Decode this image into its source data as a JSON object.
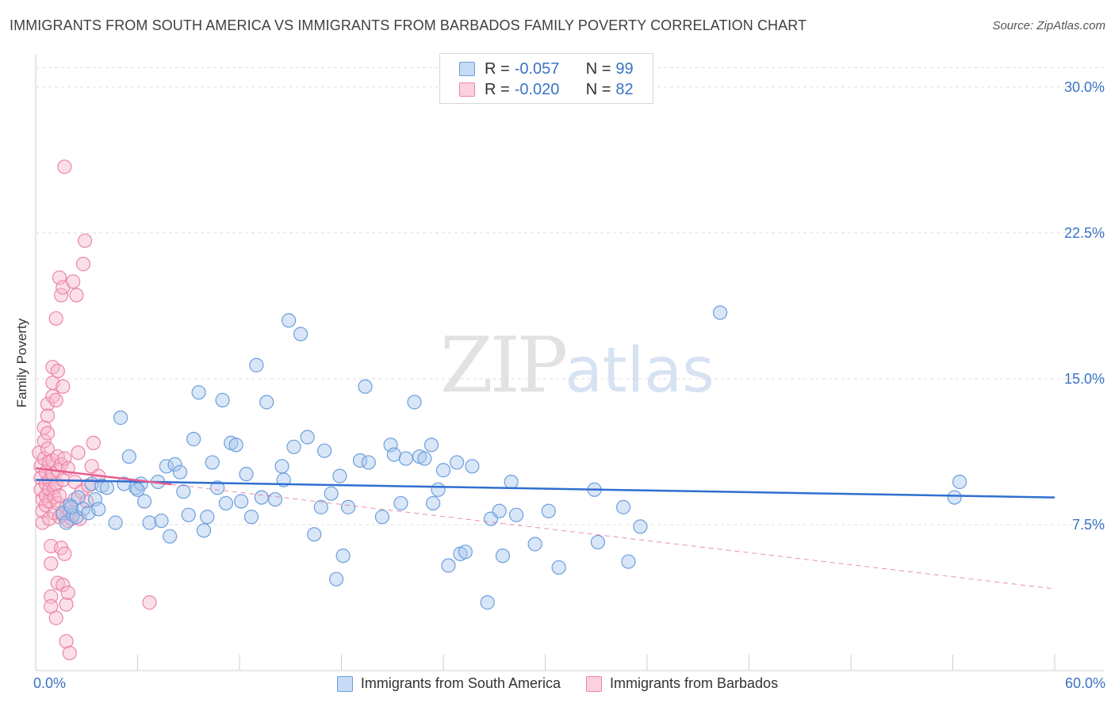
{
  "title": "IMMIGRANTS FROM SOUTH AMERICA VS IMMIGRANTS FROM BARBADOS FAMILY POVERTY CORRELATION CHART",
  "source": "Source: ZipAtlas.com",
  "watermark": {
    "zip": "ZIP",
    "atlas": "atlas"
  },
  "legend": {
    "rows": [
      {
        "r_label": "R =",
        "r_value": "-0.057",
        "n_label": "N =",
        "n_value": "99"
      },
      {
        "r_label": "R =",
        "r_value": "-0.020",
        "n_label": "N =",
        "n_value": "82"
      }
    ]
  },
  "colors": {
    "blue_fill": "#a9c8ee",
    "blue_stroke": "#6d9fdc",
    "blue_line": "#2f6fd0",
    "pink_fill": "#f6b8cc",
    "pink_stroke": "#ec85a6",
    "pink_line": "#e85c8c",
    "axis_text": "#3a73c4",
    "grid": "#dddddd"
  },
  "chart_data": {
    "type": "scatter",
    "title": "IMMIGRANTS FROM SOUTH AMERICA VS IMMIGRANTS FROM BARBADOS FAMILY POVERTY CORRELATION CHART",
    "xlabel": "",
    "ylabel": "Family Poverty",
    "xlim": [
      0,
      60
    ],
    "ylim": [
      0,
      31.5
    ],
    "x_tick_labels": [
      "0.0%",
      "60.0%"
    ],
    "y_ticks": [
      7.5,
      15.0,
      22.5,
      30.0
    ],
    "y_tick_labels": [
      "7.5%",
      "15.0%",
      "22.5%",
      "30.0%"
    ],
    "grid": true,
    "legend_position": "top-center",
    "series": [
      {
        "name": "Immigrants from South America",
        "color": "#a9c8ee",
        "trend": {
          "x": [
            0,
            60
          ],
          "y": [
            9.8,
            8.9
          ]
        },
        "points": [
          [
            1.6,
            8.1
          ],
          [
            1.8,
            7.6
          ],
          [
            2.0,
            8.5
          ],
          [
            2.2,
            8.0
          ],
          [
            2.5,
            8.9
          ],
          [
            2.4,
            7.9
          ],
          [
            2.8,
            8.3
          ],
          [
            3.1,
            8.1
          ],
          [
            3.3,
            9.6
          ],
          [
            3.5,
            8.8
          ],
          [
            3.7,
            8.3
          ],
          [
            3.9,
            9.5
          ],
          [
            4.2,
            9.4
          ],
          [
            4.7,
            7.6
          ],
          [
            5.0,
            13.0
          ],
          [
            5.2,
            9.6
          ],
          [
            5.5,
            11.0
          ],
          [
            5.9,
            9.4
          ],
          [
            6.2,
            9.6
          ],
          [
            6.4,
            8.7
          ],
          [
            6.7,
            7.6
          ],
          [
            7.2,
            9.7
          ],
          [
            7.4,
            7.7
          ],
          [
            7.7,
            10.5
          ],
          [
            7.9,
            6.9
          ],
          [
            8.2,
            10.6
          ],
          [
            8.5,
            10.2
          ],
          [
            8.7,
            9.2
          ],
          [
            9.0,
            8.0
          ],
          [
            9.3,
            11.9
          ],
          [
            9.6,
            14.3
          ],
          [
            9.9,
            7.2
          ],
          [
            10.1,
            7.9
          ],
          [
            10.4,
            10.7
          ],
          [
            10.7,
            9.4
          ],
          [
            11.0,
            13.9
          ],
          [
            11.2,
            8.6
          ],
          [
            11.5,
            11.7
          ],
          [
            11.8,
            11.6
          ],
          [
            12.1,
            8.7
          ],
          [
            12.4,
            10.1
          ],
          [
            12.7,
            7.9
          ],
          [
            13.0,
            15.7
          ],
          [
            13.3,
            8.9
          ],
          [
            13.6,
            13.8
          ],
          [
            14.1,
            8.8
          ],
          [
            14.5,
            10.5
          ],
          [
            14.6,
            9.8
          ],
          [
            14.9,
            18.0
          ],
          [
            15.2,
            11.5
          ],
          [
            15.6,
            17.3
          ],
          [
            16.0,
            12.0
          ],
          [
            16.4,
            7.0
          ],
          [
            16.8,
            8.4
          ],
          [
            17.0,
            11.3
          ],
          [
            17.4,
            9.1
          ],
          [
            17.7,
            4.7
          ],
          [
            17.9,
            10.0
          ],
          [
            18.1,
            5.9
          ],
          [
            18.4,
            8.4
          ],
          [
            19.1,
            10.8
          ],
          [
            19.4,
            14.6
          ],
          [
            19.6,
            10.7
          ],
          [
            20.4,
            7.9
          ],
          [
            20.9,
            11.6
          ],
          [
            21.1,
            11.1
          ],
          [
            21.5,
            8.6
          ],
          [
            21.8,
            10.9
          ],
          [
            22.3,
            13.8
          ],
          [
            22.6,
            11.0
          ],
          [
            22.9,
            10.9
          ],
          [
            23.3,
            11.6
          ],
          [
            23.4,
            8.6
          ],
          [
            23.7,
            9.3
          ],
          [
            24.0,
            10.3
          ],
          [
            24.3,
            5.4
          ],
          [
            24.8,
            10.7
          ],
          [
            25.0,
            6.0
          ],
          [
            25.3,
            6.1
          ],
          [
            25.7,
            10.5
          ],
          [
            26.6,
            3.5
          ],
          [
            26.8,
            7.8
          ],
          [
            27.3,
            8.2
          ],
          [
            27.5,
            5.9
          ],
          [
            28.0,
            9.7
          ],
          [
            28.3,
            8.0
          ],
          [
            29.4,
            6.5
          ],
          [
            30.2,
            8.2
          ],
          [
            30.8,
            5.3
          ],
          [
            32.9,
            9.3
          ],
          [
            33.1,
            6.6
          ],
          [
            34.6,
            8.4
          ],
          [
            34.9,
            5.6
          ],
          [
            35.6,
            7.4
          ],
          [
            40.3,
            18.4
          ],
          [
            54.1,
            8.9
          ],
          [
            54.4,
            9.7
          ],
          [
            6.0,
            9.3
          ],
          [
            2.1,
            8.4
          ]
        ]
      },
      {
        "name": "Immigrants from Barbados",
        "color": "#f6b8cc",
        "trend": {
          "x": [
            0,
            60
          ],
          "y": [
            10.4,
            4.2
          ]
        },
        "points": [
          [
            0.2,
            11.2
          ],
          [
            0.3,
            10.5
          ],
          [
            0.3,
            9.9
          ],
          [
            0.3,
            9.3
          ],
          [
            0.4,
            8.8
          ],
          [
            0.4,
            8.2
          ],
          [
            0.4,
            7.6
          ],
          [
            0.5,
            12.5
          ],
          [
            0.5,
            11.8
          ],
          [
            0.5,
            10.9
          ],
          [
            0.6,
            10.2
          ],
          [
            0.6,
            9.6
          ],
          [
            0.6,
            9.0
          ],
          [
            0.6,
            8.5
          ],
          [
            0.7,
            13.7
          ],
          [
            0.7,
            13.1
          ],
          [
            0.7,
            12.2
          ],
          [
            0.7,
            11.4
          ],
          [
            0.8,
            10.7
          ],
          [
            0.8,
            9.8
          ],
          [
            0.8,
            9.3
          ],
          [
            0.8,
            8.7
          ],
          [
            0.8,
            7.8
          ],
          [
            0.9,
            6.4
          ],
          [
            0.9,
            5.5
          ],
          [
            0.9,
            3.8
          ],
          [
            0.9,
            3.3
          ],
          [
            1.0,
            15.6
          ],
          [
            1.0,
            14.8
          ],
          [
            1.0,
            14.1
          ],
          [
            1.0,
            10.8
          ],
          [
            1.0,
            10.1
          ],
          [
            1.1,
            9.4
          ],
          [
            1.1,
            8.9
          ],
          [
            1.1,
            8.1
          ],
          [
            1.2,
            18.1
          ],
          [
            1.2,
            13.9
          ],
          [
            1.2,
            9.6
          ],
          [
            1.2,
            2.7
          ],
          [
            1.3,
            15.4
          ],
          [
            1.3,
            11.0
          ],
          [
            1.3,
            10.3
          ],
          [
            1.3,
            8.6
          ],
          [
            1.3,
            4.5
          ],
          [
            1.4,
            20.2
          ],
          [
            1.4,
            9.0
          ],
          [
            1.4,
            7.9
          ],
          [
            1.5,
            19.3
          ],
          [
            1.5,
            10.6
          ],
          [
            1.5,
            6.3
          ],
          [
            1.6,
            19.7
          ],
          [
            1.6,
            14.6
          ],
          [
            1.6,
            9.8
          ],
          [
            1.6,
            8.0
          ],
          [
            1.6,
            4.4
          ],
          [
            1.7,
            25.9
          ],
          [
            1.7,
            10.9
          ],
          [
            1.7,
            6.0
          ],
          [
            1.8,
            8.4
          ],
          [
            1.8,
            3.4
          ],
          [
            1.8,
            1.5
          ],
          [
            1.9,
            10.4
          ],
          [
            1.9,
            7.7
          ],
          [
            1.9,
            4.0
          ],
          [
            2.0,
            8.1
          ],
          [
            2.0,
            0.9
          ],
          [
            2.1,
            7.8
          ],
          [
            2.2,
            20.0
          ],
          [
            2.3,
            9.7
          ],
          [
            2.3,
            8.8
          ],
          [
            2.4,
            19.3
          ],
          [
            2.5,
            11.2
          ],
          [
            2.6,
            7.8
          ],
          [
            2.7,
            9.2
          ],
          [
            2.8,
            20.9
          ],
          [
            2.9,
            22.1
          ],
          [
            3.0,
            8.7
          ],
          [
            3.1,
            9.5
          ],
          [
            3.3,
            10.5
          ],
          [
            3.4,
            11.7
          ],
          [
            3.7,
            10.0
          ],
          [
            6.7,
            3.5
          ]
        ]
      }
    ]
  },
  "bottom_legend": [
    {
      "label": "Immigrants from South America"
    },
    {
      "label": "Immigrants from Barbados"
    }
  ]
}
